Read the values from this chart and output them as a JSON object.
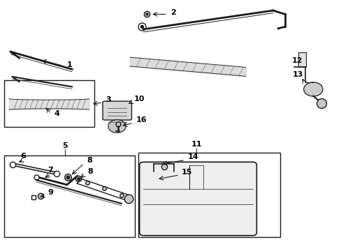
{
  "bg_color": "#ffffff",
  "line_color": "#1a1a1a",
  "label_color": "#000000",
  "figsize": [
    4.89,
    3.6
  ],
  "dpi": 100
}
